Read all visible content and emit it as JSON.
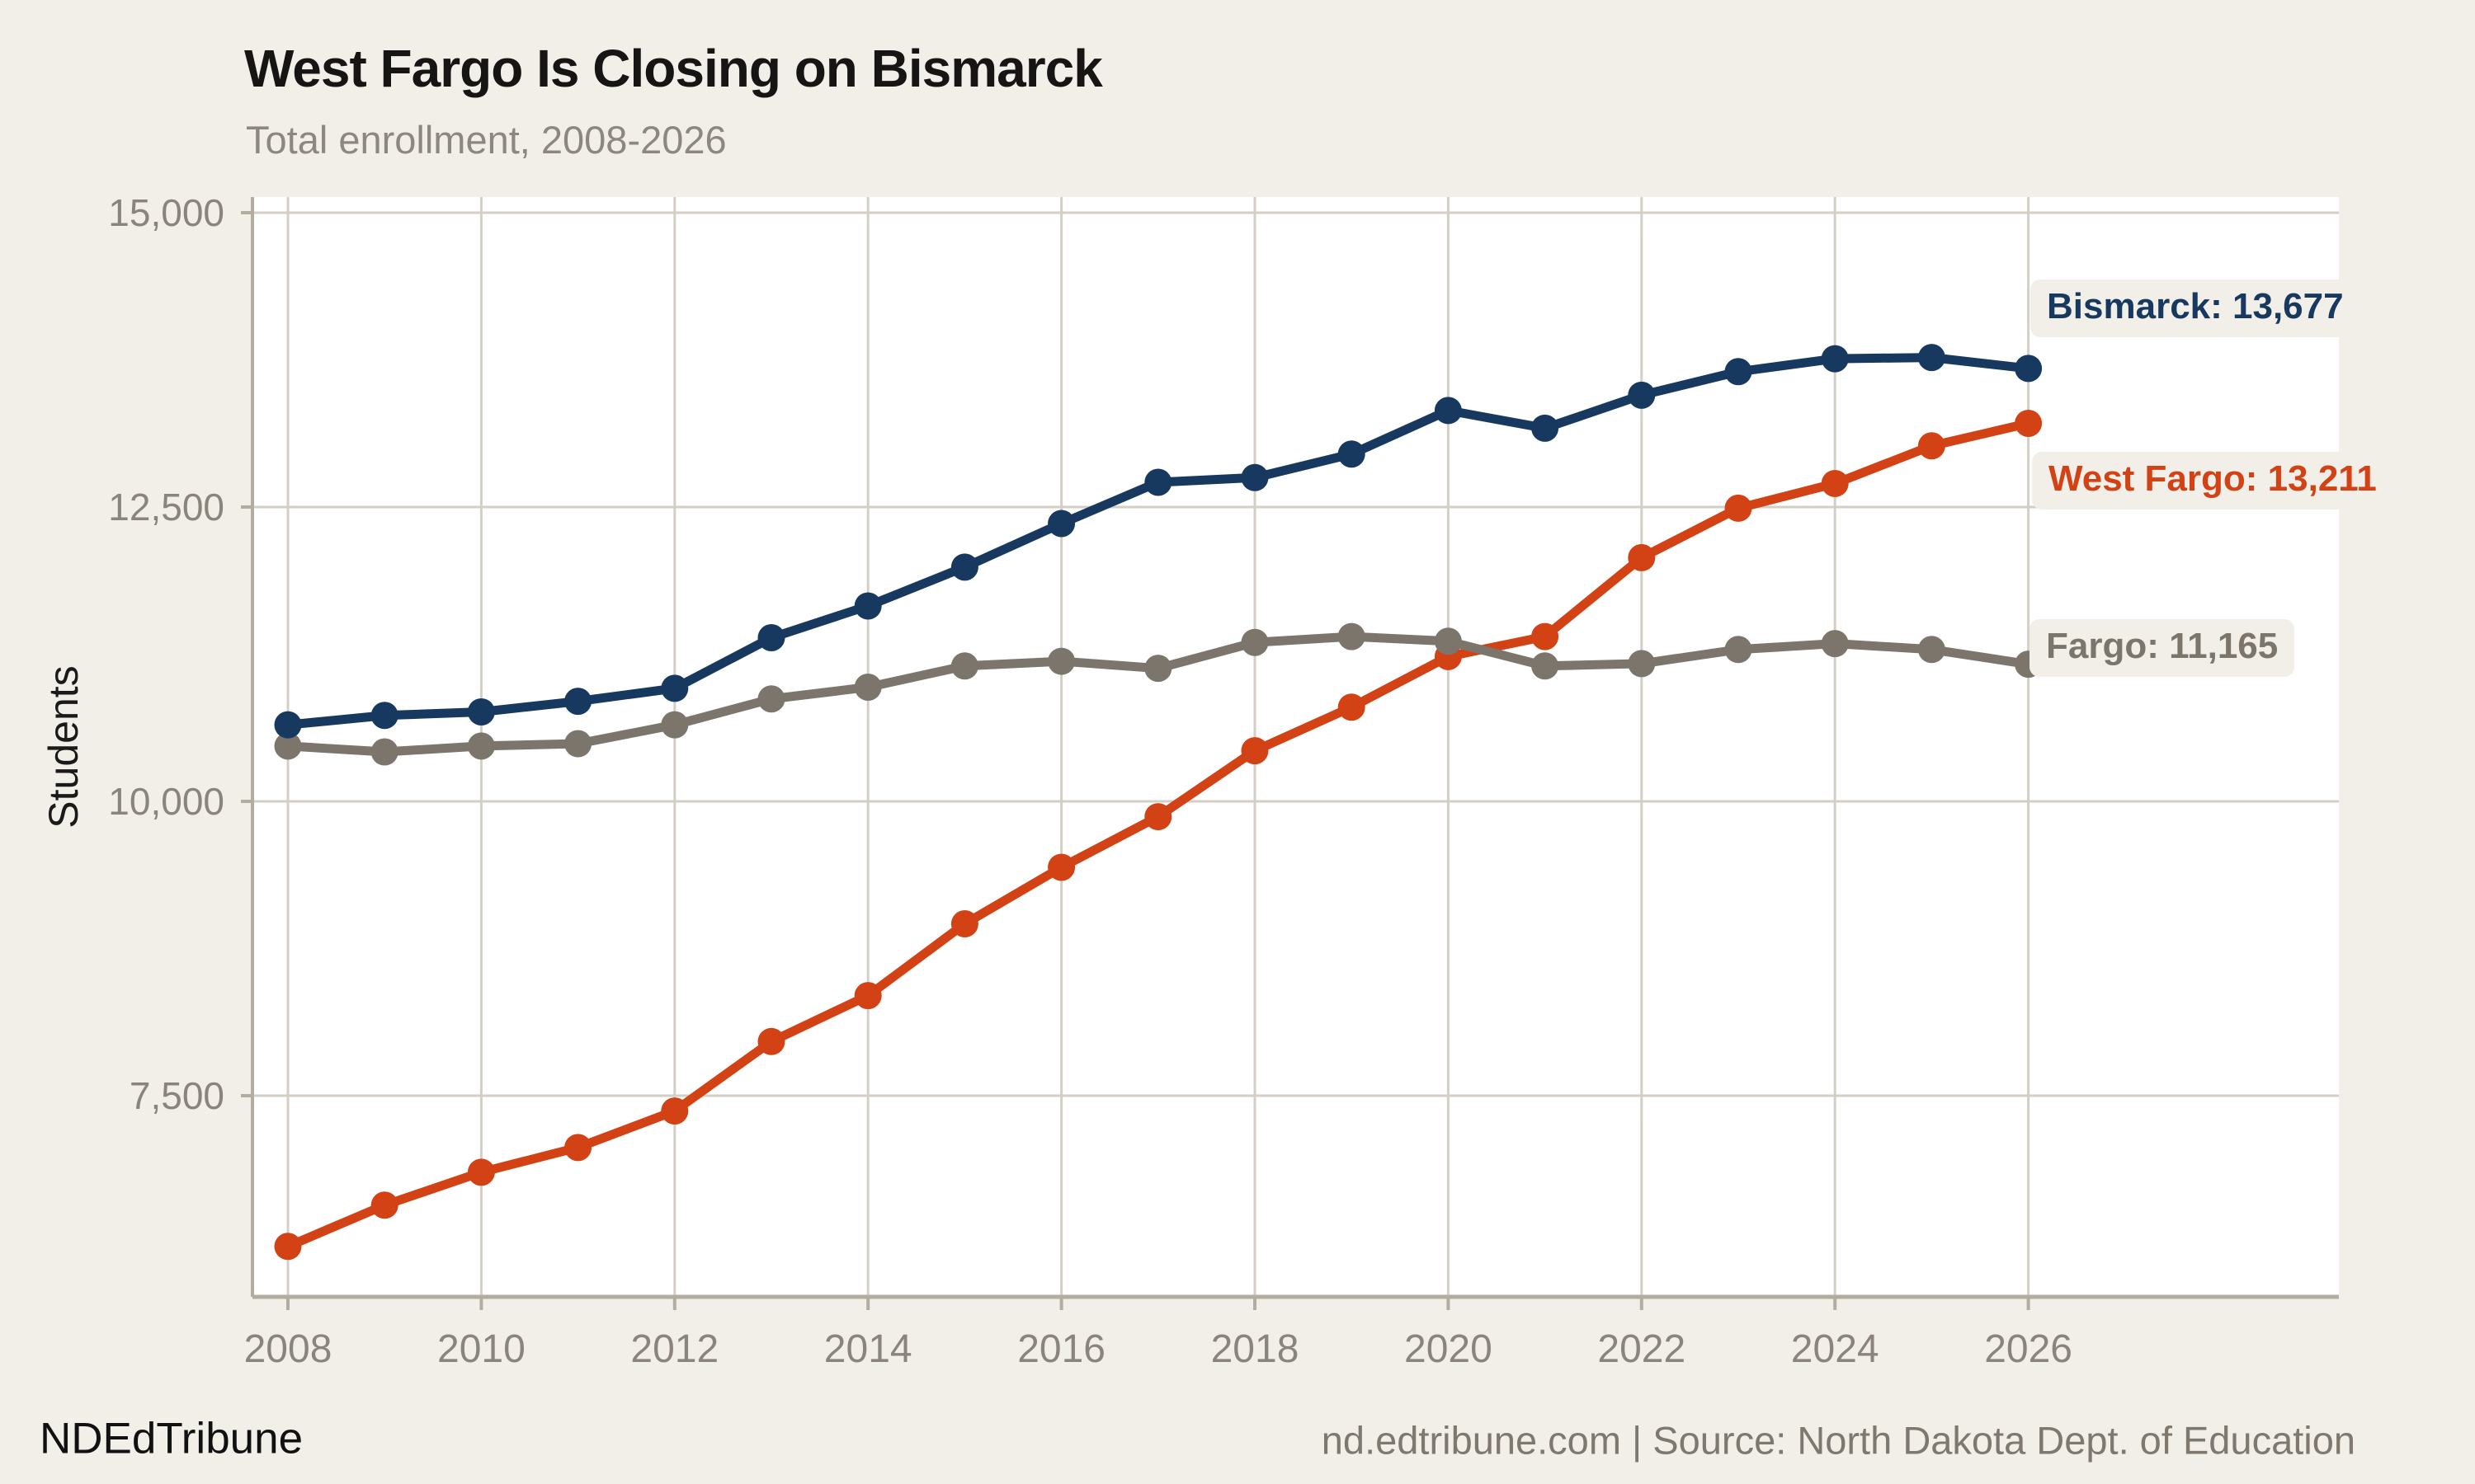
{
  "header": {
    "title": "West Fargo Is Closing on Bismarck",
    "subtitle": "Total enrollment, 2008-2026"
  },
  "footer": {
    "brand": "NDEdTribune",
    "source": "nd.edtribune.com | Source: North Dakota Dept. of Education"
  },
  "colors": {
    "background": "#f2efe9",
    "plot_background": "#ffffff",
    "gridline": "#d4cfc6",
    "axis": "#b3aca1",
    "tick_text": "#8a847c",
    "bismarck": "#17395f",
    "west_fargo": "#d24214",
    "fargo": "#7b756c"
  },
  "chart_data": {
    "type": "line",
    "title": "West Fargo Is Closing on Bismarck",
    "subtitle": "Total enrollment, 2008-2026",
    "ylabel": "Students",
    "xlabel": "",
    "grid": true,
    "legend_position": "end-of-line labels",
    "ylim": [
      5800,
      15150
    ],
    "x": [
      2008,
      2009,
      2010,
      2011,
      2012,
      2013,
      2014,
      2015,
      2016,
      2017,
      2018,
      2019,
      2020,
      2021,
      2022,
      2023,
      2024,
      2025,
      2026
    ],
    "x_tick_labels": [
      "2008",
      "2010",
      "2012",
      "2014",
      "2016",
      "2018",
      "2020",
      "2022",
      "2024",
      "2026"
    ],
    "y_ticks": [
      {
        "value": 15000,
        "label": "15,000"
      },
      {
        "value": 12500,
        "label": "12,500"
      },
      {
        "value": 10000,
        "label": "10,000"
      },
      {
        "value": 7500,
        "label": "7,500"
      }
    ],
    "series": [
      {
        "name": "Bismarck",
        "color": "#17395f",
        "end_label": "Bismarck: 13,677",
        "end_value": 13677,
        "values": [
          10650,
          10730,
          10760,
          10850,
          10960,
          11390,
          11660,
          11990,
          12360,
          12710,
          12750,
          12950,
          13320,
          13170,
          13450,
          13650,
          13760,
          13770,
          13677
        ]
      },
      {
        "name": "West Fargo",
        "color": "#d24214",
        "end_label": "West Fargo: 13,211",
        "end_value": 13211,
        "values": [
          6220,
          6570,
          6850,
          7060,
          7370,
          7960,
          8350,
          8960,
          9440,
          9870,
          10430,
          10800,
          11230,
          11400,
          12070,
          12490,
          12700,
          13020,
          13211
        ]
      },
      {
        "name": "Fargo",
        "color": "#7b756c",
        "end_label": "Fargo: 11,165",
        "end_value": 11165,
        "values": [
          10470,
          10420,
          10470,
          10490,
          10650,
          10870,
          10970,
          11150,
          11190,
          11130,
          11350,
          11400,
          11360,
          11150,
          11170,
          11290,
          11340,
          11290,
          11165
        ]
      }
    ]
  }
}
